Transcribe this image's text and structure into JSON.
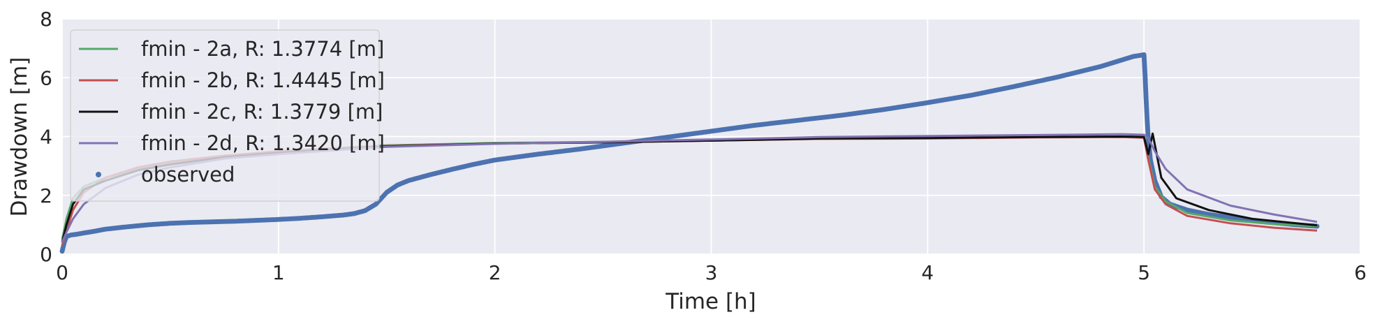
{
  "chart_data": {
    "type": "line",
    "xlabel": "Time [h]",
    "ylabel": "Drawdown [m]",
    "xlim": [
      0,
      6
    ],
    "ylim": [
      0,
      8
    ],
    "xticks": [
      "0",
      "1",
      "2",
      "3",
      "4",
      "5",
      "6"
    ],
    "yticks": [
      "0",
      "2",
      "4",
      "6",
      "8"
    ],
    "grid": true,
    "background": "#eaeaf2",
    "legend_position": "upper-left",
    "series": [
      {
        "name": "fmin - 2a, R: 1.3774 [m]",
        "color": "#55a868",
        "kind": "line",
        "x": [
          0.0,
          0.02,
          0.05,
          0.1,
          0.2,
          0.35,
          0.5,
          0.75,
          1.0,
          1.5,
          2.0,
          2.5,
          3.0,
          3.5,
          4.0,
          4.5,
          4.9,
          5.0,
          5.02,
          5.05,
          5.1,
          5.2,
          5.4,
          5.6,
          5.8
        ],
        "y": [
          0.5,
          1.2,
          1.9,
          2.3,
          2.6,
          2.9,
          3.1,
          3.3,
          3.5,
          3.7,
          3.78,
          3.82,
          3.86,
          3.92,
          3.95,
          3.98,
          4.0,
          4.0,
          3.3,
          2.3,
          1.8,
          1.4,
          1.15,
          1.02,
          0.95
        ]
      },
      {
        "name": "fmin - 2b, R: 1.4445 [m]",
        "color": "#c44e52",
        "kind": "line",
        "x": [
          0.0,
          0.02,
          0.05,
          0.1,
          0.2,
          0.35,
          0.5,
          0.75,
          1.0,
          1.5,
          2.0,
          2.5,
          3.0,
          3.5,
          4.0,
          4.5,
          4.9,
          5.0,
          5.02,
          5.05,
          5.1,
          5.2,
          5.4,
          5.6,
          5.8
        ],
        "y": [
          0.3,
          0.8,
          1.5,
          2.1,
          2.6,
          2.95,
          3.15,
          3.35,
          3.5,
          3.68,
          3.76,
          3.8,
          3.86,
          3.92,
          3.93,
          3.97,
          3.98,
          3.96,
          3.2,
          2.2,
          1.7,
          1.3,
          1.05,
          0.9,
          0.8
        ]
      },
      {
        "name": "fmin - 2c, R: 1.3779 [m]",
        "color": "#111111",
        "kind": "line",
        "x": [
          0.0,
          0.02,
          0.05,
          0.1,
          0.2,
          0.35,
          0.5,
          0.75,
          1.0,
          1.5,
          2.0,
          2.5,
          3.0,
          3.5,
          4.0,
          4.5,
          4.9,
          5.0,
          5.02,
          5.04,
          5.08,
          5.15,
          5.3,
          5.5,
          5.8
        ],
        "y": [
          0.4,
          1.0,
          1.7,
          2.2,
          2.5,
          2.85,
          3.05,
          3.3,
          3.45,
          3.66,
          3.76,
          3.8,
          3.86,
          3.93,
          3.95,
          3.98,
          4.0,
          3.98,
          3.4,
          4.1,
          2.6,
          1.9,
          1.5,
          1.2,
          0.98
        ]
      },
      {
        "name": "fmin - 2d, R: 1.3420 [m]",
        "color": "#8172b3",
        "kind": "line",
        "x": [
          0.0,
          0.02,
          0.05,
          0.1,
          0.2,
          0.35,
          0.5,
          0.75,
          1.0,
          1.5,
          2.0,
          2.5,
          3.0,
          3.5,
          4.0,
          4.5,
          4.9,
          5.0,
          5.02,
          5.05,
          5.1,
          5.2,
          5.4,
          5.6,
          5.8
        ],
        "y": [
          0.4,
          0.75,
          1.2,
          1.7,
          2.25,
          2.7,
          2.95,
          3.25,
          3.4,
          3.65,
          3.75,
          3.82,
          3.9,
          3.98,
          4.02,
          4.05,
          4.08,
          4.06,
          3.95,
          3.5,
          2.9,
          2.2,
          1.65,
          1.35,
          1.1
        ]
      },
      {
        "name": "observed",
        "color": "#4c72b0",
        "kind": "scatter",
        "x": [
          0.0,
          0.01,
          0.02,
          0.04,
          0.07,
          0.1,
          0.15,
          0.2,
          0.3,
          0.4,
          0.5,
          0.6,
          0.7,
          0.8,
          0.9,
          1.0,
          1.1,
          1.2,
          1.3,
          1.35,
          1.4,
          1.45,
          1.5,
          1.55,
          1.6,
          1.7,
          1.8,
          1.9,
          2.0,
          2.2,
          2.4,
          2.6,
          2.8,
          3.0,
          3.2,
          3.4,
          3.6,
          3.8,
          4.0,
          4.2,
          4.4,
          4.6,
          4.8,
          4.95,
          5.0,
          5.005,
          5.01,
          5.015,
          5.02,
          5.03,
          5.05,
          5.08,
          5.12,
          5.2,
          5.3,
          5.4,
          5.5,
          5.6,
          5.7,
          5.8
        ],
        "y": [
          0.1,
          0.4,
          0.6,
          0.65,
          0.68,
          0.72,
          0.78,
          0.85,
          0.93,
          1.0,
          1.05,
          1.08,
          1.1,
          1.12,
          1.15,
          1.18,
          1.22,
          1.27,
          1.33,
          1.38,
          1.48,
          1.7,
          2.1,
          2.35,
          2.5,
          2.7,
          2.88,
          3.05,
          3.2,
          3.4,
          3.58,
          3.78,
          3.98,
          4.18,
          4.38,
          4.55,
          4.72,
          4.92,
          5.15,
          5.4,
          5.7,
          6.02,
          6.38,
          6.72,
          6.78,
          6.1,
          5.25,
          4.52,
          3.9,
          3.2,
          2.5,
          1.95,
          1.7,
          1.5,
          1.35,
          1.25,
          1.15,
          1.07,
          1.0,
          0.95
        ]
      }
    ]
  }
}
